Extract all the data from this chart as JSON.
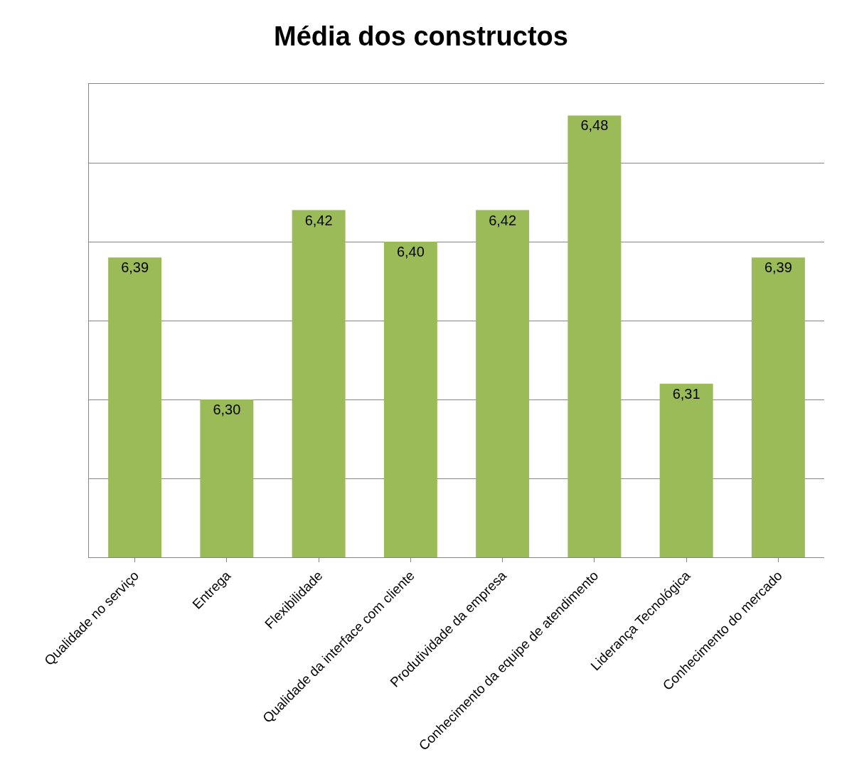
{
  "chart_data": {
    "type": "bar",
    "title": "Média dos constructos",
    "categories": [
      "Qualidade no serviço",
      "Entrega",
      "Flexibilidade",
      "Qualidade da interface com cliente",
      "Produtividade da empresa",
      "Conhecimento da equipe de atendimento",
      "Liderança Tecnológica",
      "Conhecimento do mercado"
    ],
    "values": [
      6.39,
      6.3,
      6.42,
      6.4,
      6.42,
      6.48,
      6.31,
      6.39
    ],
    "value_labels": [
      "6,39",
      "6,30",
      "6,42",
      "6,40",
      "6,42",
      "6,48",
      "6,31",
      "6,39"
    ],
    "color": "#9bbb59",
    "ylim": [
      6.2,
      6.5
    ],
    "yticks": [
      {
        "value": 6.2,
        "label": null
      },
      {
        "value": 6.25,
        "label": null
      },
      {
        "value": 6.3,
        "label": null
      },
      {
        "value": 6.35,
        "label": null
      },
      {
        "value": 6.4,
        "label": null
      },
      {
        "value": 6.45,
        "label": null
      },
      {
        "value": 6.5,
        "label": null
      }
    ],
    "tick_labels": "x",
    "grid": "y",
    "legend": false
  }
}
